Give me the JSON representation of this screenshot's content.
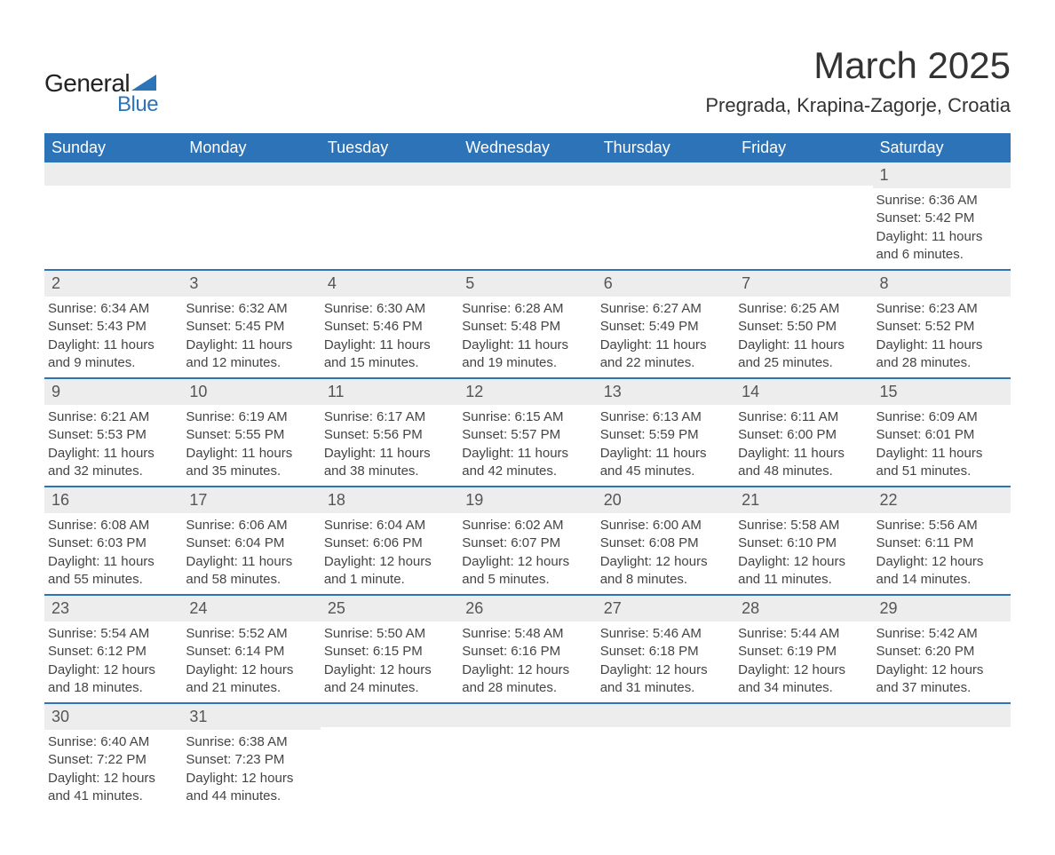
{
  "logo": {
    "text1": "General",
    "text2": "Blue"
  },
  "title": "March 2025",
  "location": "Pregrada, Krapina-Zagorje, Croatia",
  "colors": {
    "header_bg": "#2d73b8",
    "header_fg": "#ffffff",
    "daynum_bg": "#ededed",
    "border": "#2d73b8",
    "text": "#444444"
  },
  "fonts": {
    "title_pt": 42,
    "location_pt": 22,
    "th_pt": 18,
    "daynum_pt": 18,
    "body_pt": 15
  },
  "weekdays": [
    "Sunday",
    "Monday",
    "Tuesday",
    "Wednesday",
    "Thursday",
    "Friday",
    "Saturday"
  ],
  "weeks": [
    [
      {
        "day": "",
        "sunrise": "",
        "sunset": "",
        "daylight": ""
      },
      {
        "day": "",
        "sunrise": "",
        "sunset": "",
        "daylight": ""
      },
      {
        "day": "",
        "sunrise": "",
        "sunset": "",
        "daylight": ""
      },
      {
        "day": "",
        "sunrise": "",
        "sunset": "",
        "daylight": ""
      },
      {
        "day": "",
        "sunrise": "",
        "sunset": "",
        "daylight": ""
      },
      {
        "day": "",
        "sunrise": "",
        "sunset": "",
        "daylight": ""
      },
      {
        "day": "1",
        "sunrise": "Sunrise: 6:36 AM",
        "sunset": "Sunset: 5:42 PM",
        "daylight": "Daylight: 11 hours and 6 minutes."
      }
    ],
    [
      {
        "day": "2",
        "sunrise": "Sunrise: 6:34 AM",
        "sunset": "Sunset: 5:43 PM",
        "daylight": "Daylight: 11 hours and 9 minutes."
      },
      {
        "day": "3",
        "sunrise": "Sunrise: 6:32 AM",
        "sunset": "Sunset: 5:45 PM",
        "daylight": "Daylight: 11 hours and 12 minutes."
      },
      {
        "day": "4",
        "sunrise": "Sunrise: 6:30 AM",
        "sunset": "Sunset: 5:46 PM",
        "daylight": "Daylight: 11 hours and 15 minutes."
      },
      {
        "day": "5",
        "sunrise": "Sunrise: 6:28 AM",
        "sunset": "Sunset: 5:48 PM",
        "daylight": "Daylight: 11 hours and 19 minutes."
      },
      {
        "day": "6",
        "sunrise": "Sunrise: 6:27 AM",
        "sunset": "Sunset: 5:49 PM",
        "daylight": "Daylight: 11 hours and 22 minutes."
      },
      {
        "day": "7",
        "sunrise": "Sunrise: 6:25 AM",
        "sunset": "Sunset: 5:50 PM",
        "daylight": "Daylight: 11 hours and 25 minutes."
      },
      {
        "day": "8",
        "sunrise": "Sunrise: 6:23 AM",
        "sunset": "Sunset: 5:52 PM",
        "daylight": "Daylight: 11 hours and 28 minutes."
      }
    ],
    [
      {
        "day": "9",
        "sunrise": "Sunrise: 6:21 AM",
        "sunset": "Sunset: 5:53 PM",
        "daylight": "Daylight: 11 hours and 32 minutes."
      },
      {
        "day": "10",
        "sunrise": "Sunrise: 6:19 AM",
        "sunset": "Sunset: 5:55 PM",
        "daylight": "Daylight: 11 hours and 35 minutes."
      },
      {
        "day": "11",
        "sunrise": "Sunrise: 6:17 AM",
        "sunset": "Sunset: 5:56 PM",
        "daylight": "Daylight: 11 hours and 38 minutes."
      },
      {
        "day": "12",
        "sunrise": "Sunrise: 6:15 AM",
        "sunset": "Sunset: 5:57 PM",
        "daylight": "Daylight: 11 hours and 42 minutes."
      },
      {
        "day": "13",
        "sunrise": "Sunrise: 6:13 AM",
        "sunset": "Sunset: 5:59 PM",
        "daylight": "Daylight: 11 hours and 45 minutes."
      },
      {
        "day": "14",
        "sunrise": "Sunrise: 6:11 AM",
        "sunset": "Sunset: 6:00 PM",
        "daylight": "Daylight: 11 hours and 48 minutes."
      },
      {
        "day": "15",
        "sunrise": "Sunrise: 6:09 AM",
        "sunset": "Sunset: 6:01 PM",
        "daylight": "Daylight: 11 hours and 51 minutes."
      }
    ],
    [
      {
        "day": "16",
        "sunrise": "Sunrise: 6:08 AM",
        "sunset": "Sunset: 6:03 PM",
        "daylight": "Daylight: 11 hours and 55 minutes."
      },
      {
        "day": "17",
        "sunrise": "Sunrise: 6:06 AM",
        "sunset": "Sunset: 6:04 PM",
        "daylight": "Daylight: 11 hours and 58 minutes."
      },
      {
        "day": "18",
        "sunrise": "Sunrise: 6:04 AM",
        "sunset": "Sunset: 6:06 PM",
        "daylight": "Daylight: 12 hours and 1 minute."
      },
      {
        "day": "19",
        "sunrise": "Sunrise: 6:02 AM",
        "sunset": "Sunset: 6:07 PM",
        "daylight": "Daylight: 12 hours and 5 minutes."
      },
      {
        "day": "20",
        "sunrise": "Sunrise: 6:00 AM",
        "sunset": "Sunset: 6:08 PM",
        "daylight": "Daylight: 12 hours and 8 minutes."
      },
      {
        "day": "21",
        "sunrise": "Sunrise: 5:58 AM",
        "sunset": "Sunset: 6:10 PM",
        "daylight": "Daylight: 12 hours and 11 minutes."
      },
      {
        "day": "22",
        "sunrise": "Sunrise: 5:56 AM",
        "sunset": "Sunset: 6:11 PM",
        "daylight": "Daylight: 12 hours and 14 minutes."
      }
    ],
    [
      {
        "day": "23",
        "sunrise": "Sunrise: 5:54 AM",
        "sunset": "Sunset: 6:12 PM",
        "daylight": "Daylight: 12 hours and 18 minutes."
      },
      {
        "day": "24",
        "sunrise": "Sunrise: 5:52 AM",
        "sunset": "Sunset: 6:14 PM",
        "daylight": "Daylight: 12 hours and 21 minutes."
      },
      {
        "day": "25",
        "sunrise": "Sunrise: 5:50 AM",
        "sunset": "Sunset: 6:15 PM",
        "daylight": "Daylight: 12 hours and 24 minutes."
      },
      {
        "day": "26",
        "sunrise": "Sunrise: 5:48 AM",
        "sunset": "Sunset: 6:16 PM",
        "daylight": "Daylight: 12 hours and 28 minutes."
      },
      {
        "day": "27",
        "sunrise": "Sunrise: 5:46 AM",
        "sunset": "Sunset: 6:18 PM",
        "daylight": "Daylight: 12 hours and 31 minutes."
      },
      {
        "day": "28",
        "sunrise": "Sunrise: 5:44 AM",
        "sunset": "Sunset: 6:19 PM",
        "daylight": "Daylight: 12 hours and 34 minutes."
      },
      {
        "day": "29",
        "sunrise": "Sunrise: 5:42 AM",
        "sunset": "Sunset: 6:20 PM",
        "daylight": "Daylight: 12 hours and 37 minutes."
      }
    ],
    [
      {
        "day": "30",
        "sunrise": "Sunrise: 6:40 AM",
        "sunset": "Sunset: 7:22 PM",
        "daylight": "Daylight: 12 hours and 41 minutes."
      },
      {
        "day": "31",
        "sunrise": "Sunrise: 6:38 AM",
        "sunset": "Sunset: 7:23 PM",
        "daylight": "Daylight: 12 hours and 44 minutes."
      },
      {
        "day": "",
        "sunrise": "",
        "sunset": "",
        "daylight": ""
      },
      {
        "day": "",
        "sunrise": "",
        "sunset": "",
        "daylight": ""
      },
      {
        "day": "",
        "sunrise": "",
        "sunset": "",
        "daylight": ""
      },
      {
        "day": "",
        "sunrise": "",
        "sunset": "",
        "daylight": ""
      },
      {
        "day": "",
        "sunrise": "",
        "sunset": "",
        "daylight": ""
      }
    ]
  ]
}
